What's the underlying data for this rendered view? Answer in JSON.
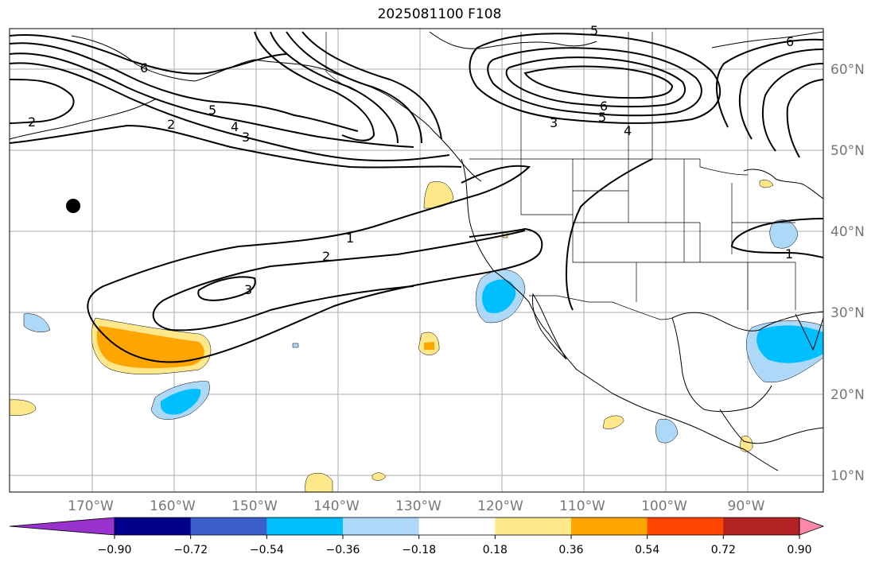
{
  "title": "2025081100 F108",
  "map": {
    "lat_labels": [
      "60°N",
      "50°N",
      "40°N",
      "30°N",
      "20°N",
      "10°N"
    ],
    "lon_labels": [
      "170°W",
      "160°W",
      "150°W",
      "140°W",
      "130°W",
      "120°W",
      "110°W",
      "100°W",
      "90°W"
    ],
    "contour_labels": [
      {
        "text": "6"
      },
      {
        "text": "5"
      },
      {
        "text": "4"
      },
      {
        "text": "3"
      },
      {
        "text": "2"
      },
      {
        "text": "2"
      },
      {
        "text": "1"
      },
      {
        "text": "2"
      },
      {
        "text": "3"
      },
      {
        "text": "6"
      },
      {
        "text": "5"
      },
      {
        "text": "4"
      },
      {
        "text": "3"
      },
      {
        "text": "5"
      },
      {
        "text": "6"
      },
      {
        "text": "1"
      }
    ],
    "marker": {
      "name": "point-marker",
      "color": "#000000"
    }
  },
  "colorbar": {
    "colors": [
      "#9932cc",
      "#00008b",
      "#3a5fcd",
      "#00bfff",
      "#add8f8",
      "#ffffff",
      "#ffe88a",
      "#ffa500",
      "#ff4500",
      "#b22222",
      "#ff88aa"
    ],
    "ticks": [
      "−0.90",
      "−0.72",
      "−0.54",
      "−0.36",
      "−0.18",
      "0.18",
      "0.36",
      "0.54",
      "0.72",
      "0.90"
    ]
  }
}
